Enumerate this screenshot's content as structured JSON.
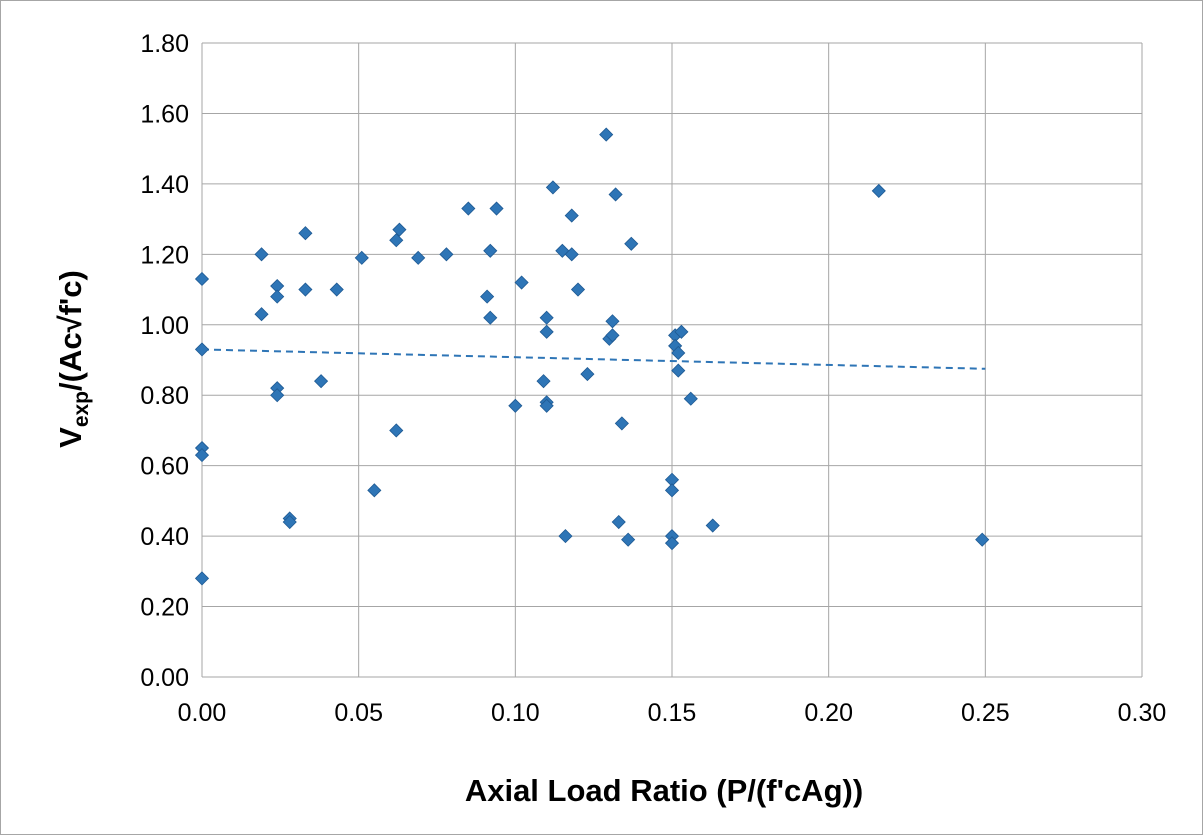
{
  "chart_data": {
    "type": "scatter",
    "title": "",
    "xlabel": "Axial Load Ratio (P/(f'cAg))",
    "ylabel": {
      "main": "V",
      "sub": "exp",
      "rest": "/(Ac√f'c)"
    },
    "xlim": [
      0,
      0.3
    ],
    "ylim": [
      0,
      1.8
    ],
    "x_ticks": [
      "0.00",
      "0.05",
      "0.10",
      "0.15",
      "0.20",
      "0.25",
      "0.30"
    ],
    "y_ticks": [
      "0.00",
      "0.20",
      "0.40",
      "0.60",
      "0.80",
      "1.00",
      "1.20",
      "1.40",
      "1.60",
      "1.80"
    ],
    "grid": true,
    "legend": "none",
    "marker_color": "#2e75b6",
    "trendline": {
      "type": "linear",
      "style": "dashed",
      "color": "#2e75b6",
      "x": [
        0,
        0.25
      ],
      "y": [
        0.93,
        0.875
      ]
    },
    "series": [
      {
        "points": [
          [
            0.0,
            1.13
          ],
          [
            0.0,
            0.93
          ],
          [
            0.0,
            0.65
          ],
          [
            0.0,
            0.63
          ],
          [
            0.0,
            0.28
          ],
          [
            0.019,
            1.2
          ],
          [
            0.019,
            1.03
          ],
          [
            0.024,
            1.11
          ],
          [
            0.024,
            1.08
          ],
          [
            0.024,
            0.82
          ],
          [
            0.024,
            0.8
          ],
          [
            0.028,
            0.45
          ],
          [
            0.028,
            0.44
          ],
          [
            0.033,
            1.26
          ],
          [
            0.033,
            1.1
          ],
          [
            0.038,
            0.84
          ],
          [
            0.043,
            1.1
          ],
          [
            0.051,
            1.19
          ],
          [
            0.055,
            0.53
          ],
          [
            0.062,
            1.24
          ],
          [
            0.062,
            0.7
          ],
          [
            0.063,
            1.27
          ],
          [
            0.069,
            1.19
          ],
          [
            0.078,
            1.2
          ],
          [
            0.085,
            1.33
          ],
          [
            0.091,
            1.08
          ],
          [
            0.092,
            1.21
          ],
          [
            0.092,
            1.02
          ],
          [
            0.094,
            1.33
          ],
          [
            0.1,
            0.77
          ],
          [
            0.102,
            1.12
          ],
          [
            0.109,
            0.84
          ],
          [
            0.11,
            1.02
          ],
          [
            0.11,
            0.98
          ],
          [
            0.11,
            0.78
          ],
          [
            0.11,
            0.77
          ],
          [
            0.112,
            1.39
          ],
          [
            0.115,
            1.21
          ],
          [
            0.116,
            0.4
          ],
          [
            0.118,
            1.31
          ],
          [
            0.118,
            1.2
          ],
          [
            0.12,
            1.1
          ],
          [
            0.123,
            0.86
          ],
          [
            0.129,
            1.54
          ],
          [
            0.13,
            0.96
          ],
          [
            0.131,
            1.01
          ],
          [
            0.131,
            0.97
          ],
          [
            0.132,
            1.37
          ],
          [
            0.133,
            0.44
          ],
          [
            0.134,
            0.72
          ],
          [
            0.136,
            0.39
          ],
          [
            0.137,
            1.23
          ],
          [
            0.15,
            0.56
          ],
          [
            0.15,
            0.53
          ],
          [
            0.15,
            0.4
          ],
          [
            0.15,
            0.38
          ],
          [
            0.151,
            0.97
          ],
          [
            0.151,
            0.94
          ],
          [
            0.152,
            0.92
          ],
          [
            0.152,
            0.87
          ],
          [
            0.153,
            0.98
          ],
          [
            0.156,
            0.79
          ],
          [
            0.163,
            0.43
          ],
          [
            0.216,
            1.38
          ],
          [
            0.249,
            0.39
          ]
        ]
      }
    ]
  }
}
